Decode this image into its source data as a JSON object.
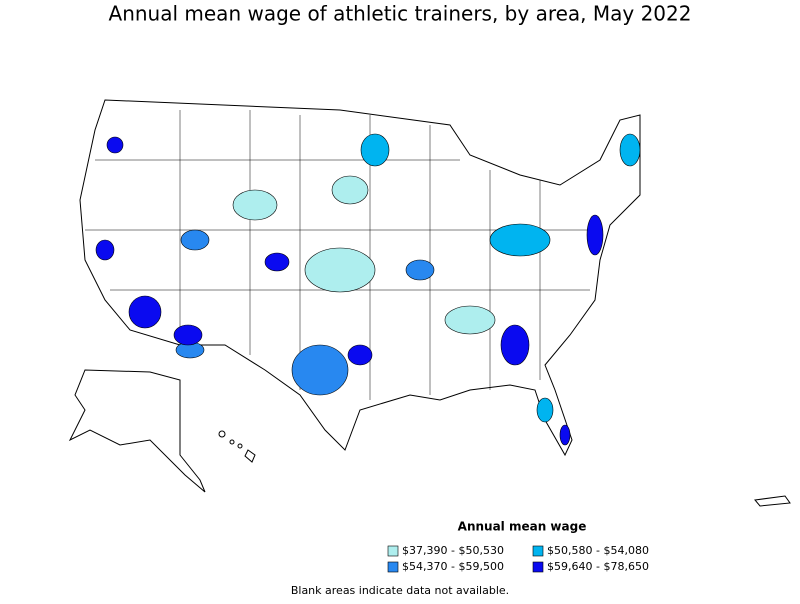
{
  "title": "Annual mean wage of athletic trainers, by area, May 2022",
  "legend": {
    "title": "Annual mean wage",
    "items": [
      {
        "label": "$37,390 - $50,530",
        "color": "#aeeeee"
      },
      {
        "label": "$50,580 - $54,080",
        "color": "#00b4f0"
      },
      {
        "label": "$54,370 - $59,500",
        "color": "#2888f0"
      },
      {
        "label": "$59,640 - $78,650",
        "color": "#0a0af0"
      }
    ]
  },
  "footnote": "Blank areas indicate data not available."
}
